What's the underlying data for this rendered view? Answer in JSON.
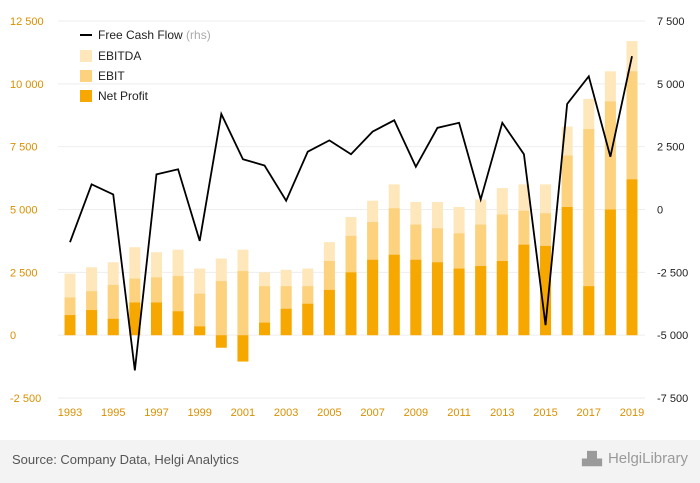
{
  "chart_data": {
    "type": "bar",
    "categories": [
      "1993",
      "1994",
      "1995",
      "1996",
      "1997",
      "1998",
      "1999",
      "2000",
      "2001",
      "2002",
      "2003",
      "2004",
      "2005",
      "2006",
      "2007",
      "2008",
      "2009",
      "2010",
      "2011",
      "2012",
      "2013",
      "2014",
      "2015",
      "2016",
      "2017",
      "2018",
      "2019"
    ],
    "x_tick_labels": [
      "1993",
      "1995",
      "1997",
      "1999",
      "2001",
      "2003",
      "2005",
      "2007",
      "2009",
      "2011",
      "2013",
      "2015",
      "2017",
      "2019"
    ],
    "left_axis": {
      "ylim": [
        -2500,
        12500
      ],
      "ticks": [
        -2500,
        0,
        2500,
        5000,
        7500,
        10000,
        12500
      ],
      "tick_labels": [
        "-2 500",
        "0",
        "2 500",
        "5 000",
        "7 500",
        "10 000",
        "12 500"
      ]
    },
    "right_axis": {
      "ylim": [
        -7500,
        7500
      ],
      "ticks": [
        -7500,
        -5000,
        -2500,
        0,
        2500,
        5000,
        7500
      ],
      "tick_labels": [
        "-7 500",
        "-5 000",
        "-2 500",
        "0",
        "2 500",
        "5 000",
        "7 500"
      ]
    },
    "series": [
      {
        "name": "EBITDA",
        "color": "#fde7bb",
        "axis": "left",
        "values": [
          2450,
          2700,
          2900,
          3500,
          3300,
          3400,
          2650,
          3050,
          3400,
          2500,
          2600,
          2650,
          3700,
          4700,
          5350,
          6000,
          5300,
          5300,
          5100,
          5400,
          5850,
          6000,
          6000,
          8300,
          9400,
          10500,
          11700
        ]
      },
      {
        "name": "EBIT",
        "color": "#fcd27e",
        "axis": "left",
        "values": [
          1500,
          1750,
          2000,
          2250,
          2300,
          2350,
          1650,
          2150,
          2550,
          1950,
          1950,
          1950,
          2950,
          3950,
          4500,
          5050,
          4400,
          4250,
          4050,
          4400,
          4800,
          4950,
          4850,
          7150,
          8200,
          9300,
          10500
        ]
      },
      {
        "name": "Net Profit",
        "color": "#f7a800",
        "axis": "left",
        "values": [
          800,
          1000,
          650,
          1300,
          1300,
          950,
          350,
          -500,
          -1050,
          500,
          1050,
          1250,
          1800,
          2500,
          3000,
          3200,
          3000,
          2900,
          2650,
          2750,
          2950,
          3600,
          3550,
          5100,
          1950,
          5000,
          6200
        ]
      },
      {
        "name": "Free Cash Flow (rhs)",
        "legend_main": "Free Cash Flow",
        "legend_suffix": " (rhs)",
        "color": "#000000",
        "axis": "right",
        "type": "line",
        "values": [
          -1300,
          1000,
          600,
          -6400,
          1400,
          1600,
          -1250,
          3800,
          2000,
          1750,
          350,
          2300,
          2750,
          2200,
          3100,
          3550,
          1700,
          3250,
          3450,
          400,
          3450,
          2200,
          -4600,
          4200,
          5300,
          2100,
          6100
        ]
      }
    ],
    "legend_placement": "top-left",
    "grid": true
  },
  "footer": {
    "source": "Source: Company Data, Helgi Analytics",
    "brand": "HelgiLibrary"
  },
  "colors": {
    "axis_label": "#d89000",
    "gridline": "#eeeeee",
    "footer_bg": "#f3f3f3"
  }
}
